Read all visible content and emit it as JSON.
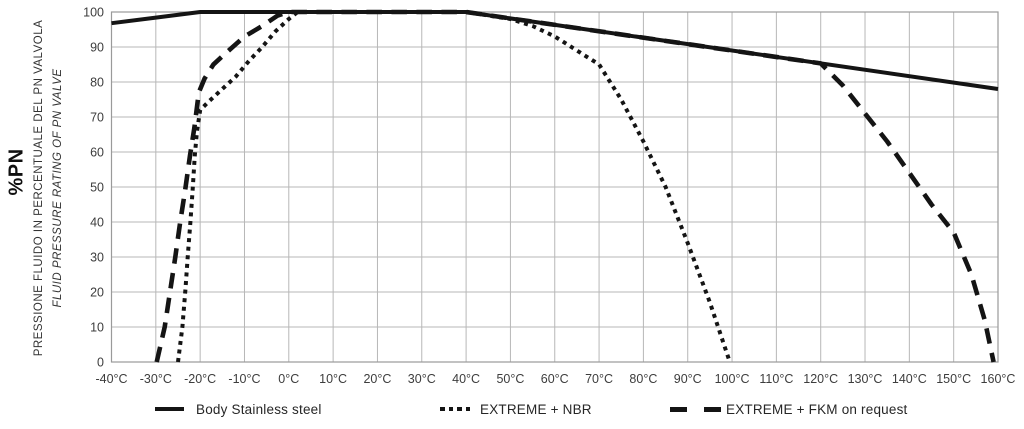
{
  "page": {
    "background": "#ffffff"
  },
  "chart_data": {
    "type": "line",
    "title": "",
    "x_axis": {
      "unit": "°C",
      "min": -40,
      "max": 160,
      "tick_step": 10,
      "tick_labels": [
        "-40°C",
        "-30°C",
        "-20°C",
        "-10°C",
        "0°C",
        "10°C",
        "20°C",
        "30°C",
        "40°C",
        "50°C",
        "60°C",
        "70°C",
        "80°C",
        "90°C",
        "100°C",
        "110°C",
        "120°C",
        "130°C",
        "140°C",
        "150°C",
        "160°C"
      ]
    },
    "y_axis": {
      "min": 0,
      "max": 100,
      "tick_step": 10,
      "tick_labels": [
        "0",
        "10",
        "20",
        "30",
        "40",
        "50",
        "60",
        "70",
        "80",
        "90",
        "100"
      ],
      "title_main": "%PN",
      "title_italian": "PRESSIONE FLUIDO IN PERCENTUALE DEL PN VALVOLA",
      "title_english": "FLUID PRESSURE RATING OF PN VALVE"
    },
    "grid": {
      "show": true,
      "color": "#b7b7b7"
    },
    "frame_color": "#9a9a9a",
    "tick_text_color": "#3d3d3d",
    "legend_position": "bottom",
    "series": [
      {
        "name": "Body Stainless steel",
        "line_style": "solid",
        "color": "#141414",
        "points": [
          [
            -40,
            96.8
          ],
          [
            -30,
            98.4
          ],
          [
            -20,
            100
          ],
          [
            40,
            100
          ],
          [
            160,
            78
          ]
        ]
      },
      {
        "name": "EXTREME + NBR",
        "line_style": "dotted",
        "color": "#141414",
        "points": [
          [
            -25,
            0
          ],
          [
            -24,
            10
          ],
          [
            -23.3,
            21
          ],
          [
            -22.8,
            30
          ],
          [
            -22.2,
            40
          ],
          [
            -21.7,
            49
          ],
          [
            -21.2,
            59
          ],
          [
            -20.7,
            66
          ],
          [
            -20,
            72
          ],
          [
            -18,
            74.5
          ],
          [
            -15,
            78
          ],
          [
            -12,
            81.5
          ],
          [
            -9,
            86
          ],
          [
            -6,
            90
          ],
          [
            -3,
            94.5
          ],
          [
            0,
            98
          ],
          [
            2,
            100
          ],
          [
            40,
            100
          ],
          [
            50,
            98
          ],
          [
            55,
            96
          ],
          [
            60,
            93
          ],
          [
            65,
            89
          ],
          [
            70,
            85
          ],
          [
            75,
            75
          ],
          [
            80,
            63
          ],
          [
            85,
            50
          ],
          [
            90,
            34
          ],
          [
            95,
            17
          ],
          [
            99.5,
            0
          ]
        ]
      },
      {
        "name": "EXTREME + FKM on request",
        "line_style": "dashed",
        "color": "#141414",
        "points": [
          [
            -29.8,
            0
          ],
          [
            -28,
            10
          ],
          [
            -26.8,
            20
          ],
          [
            -25.6,
            30
          ],
          [
            -24.5,
            40
          ],
          [
            -23.4,
            49
          ],
          [
            -22.3,
            59
          ],
          [
            -21.3,
            67
          ],
          [
            -20.3,
            77
          ],
          [
            -19,
            81
          ],
          [
            -17,
            85
          ],
          [
            -14,
            88.5
          ],
          [
            -10,
            93
          ],
          [
            -6,
            96
          ],
          [
            -2.5,
            99
          ],
          [
            0,
            100
          ],
          [
            40,
            100
          ],
          [
            120,
            85.3
          ],
          [
            125,
            79
          ],
          [
            130,
            71
          ],
          [
            135,
            63
          ],
          [
            140,
            54
          ],
          [
            145,
            45
          ],
          [
            150,
            37
          ],
          [
            154,
            25
          ],
          [
            157,
            12
          ],
          [
            159,
            0
          ]
        ]
      }
    ]
  }
}
